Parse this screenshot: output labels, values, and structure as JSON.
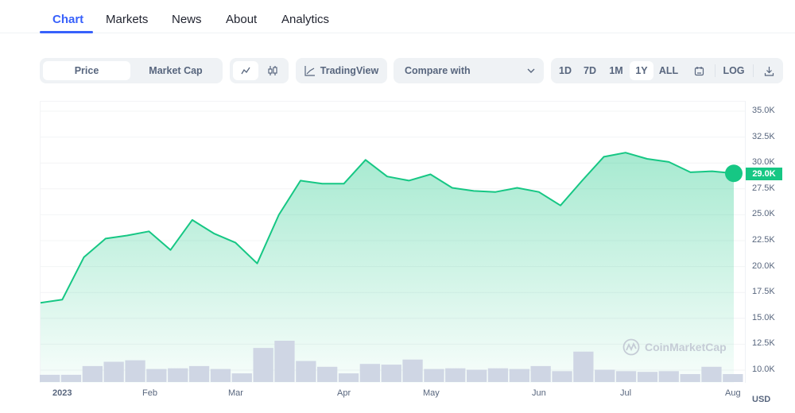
{
  "tabs": [
    {
      "label": "Chart",
      "active": true
    },
    {
      "label": "Markets",
      "active": false
    },
    {
      "label": "News",
      "active": false
    },
    {
      "label": "About",
      "active": false
    },
    {
      "label": "Analytics",
      "active": false
    }
  ],
  "toolbar": {
    "metric_toggle": [
      {
        "label": "Price",
        "active": true
      },
      {
        "label": "Market Cap",
        "active": false
      }
    ],
    "chart_type": [
      {
        "icon": "line-chart-icon",
        "active": true
      },
      {
        "icon": "candlestick-icon",
        "active": false
      }
    ],
    "tradingview_label": "TradingView",
    "compare_placeholder": "Compare with",
    "ranges": [
      {
        "label": "1D",
        "active": false
      },
      {
        "label": "7D",
        "active": false
      },
      {
        "label": "1M",
        "active": false
      },
      {
        "label": "1Y",
        "active": true
      },
      {
        "label": "ALL",
        "active": false
      }
    ],
    "log_label": "LOG",
    "calendar_icon": "calendar-icon",
    "download_icon": "download-icon"
  },
  "colors": {
    "accent": "#3861fb",
    "line": "#16c784",
    "volume": "#cfd6e4",
    "axis_text": "#58667e"
  },
  "current_price_label": "29.0K",
  "currency_label": "USD",
  "watermark": "CoinMarketCap",
  "chart_data": {
    "type": "area",
    "title": "",
    "xlabel": "",
    "ylabel": "USD",
    "ylim": [
      10000,
      35000
    ],
    "y_ticks": [
      "35.0K",
      "32.5K",
      "30.0K",
      "27.5K",
      "25.0K",
      "22.5K",
      "20.0K",
      "17.5K",
      "15.0K",
      "12.5K",
      "10.0K"
    ],
    "x_ticks": [
      "2023",
      "Feb",
      "Mar",
      "Apr",
      "May",
      "Jun",
      "Jul",
      "Aug"
    ],
    "grid": true,
    "legend": null,
    "series": [
      {
        "name": "Price",
        "values": [
          16500,
          16800,
          20900,
          22700,
          23000,
          23400,
          21600,
          24500,
          23200,
          22300,
          20300,
          25000,
          28300,
          28000,
          28000,
          30300,
          28700,
          28300,
          28900,
          27600,
          27300,
          27200,
          27600,
          27200,
          25900,
          28300,
          30600,
          31000,
          30400,
          30100,
          29100,
          29200,
          29000
        ]
      },
      {
        "name": "Volume (relative)",
        "values": [
          10,
          10,
          22,
          28,
          30,
          18,
          19,
          22,
          18,
          12,
          47,
          57,
          29,
          21,
          12,
          25,
          24,
          31,
          18,
          19,
          17,
          19,
          18,
          22,
          15,
          42,
          17,
          15,
          14,
          15,
          11,
          21,
          11
        ]
      }
    ],
    "current_value": 29000
  }
}
